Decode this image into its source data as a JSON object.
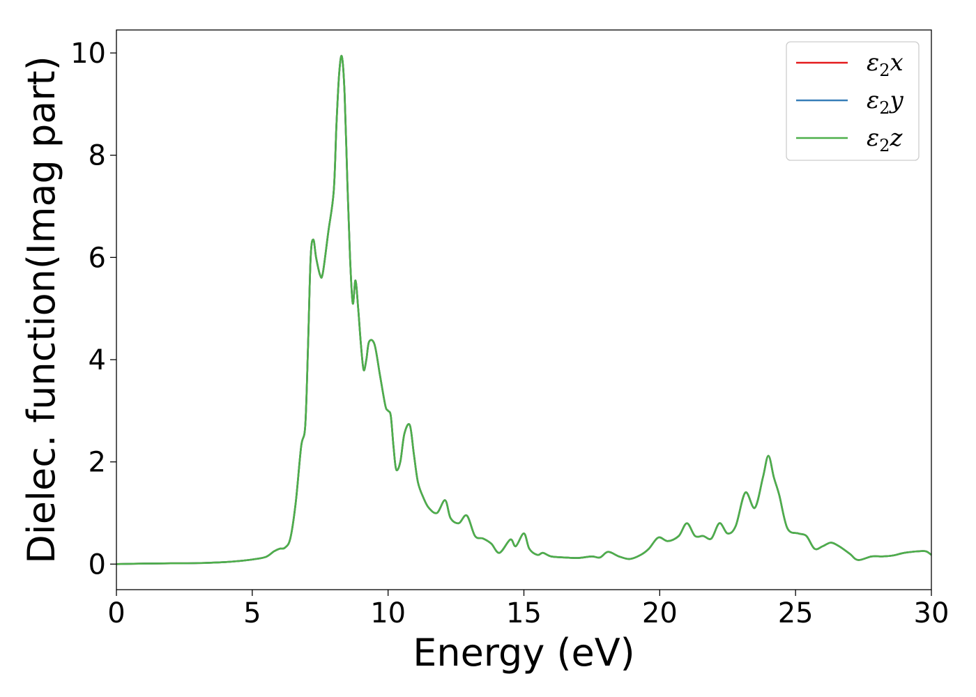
{
  "chart_data": {
    "type": "line",
    "xlabel": "Energy (eV)",
    "ylabel": "Dielec. function(Imag part)",
    "xlim": [
      0,
      30
    ],
    "ylim": [
      -0.5,
      10.45
    ],
    "xticks": [
      0,
      5,
      10,
      15,
      20,
      25,
      30
    ],
    "yticks": [
      0,
      2,
      4,
      6,
      8,
      10
    ],
    "grid": false,
    "legend_position": "top-right",
    "x": [
      0,
      1,
      2,
      3,
      4,
      4.5,
      5,
      5.5,
      5.8,
      6.0,
      6.2,
      6.4,
      6.6,
      6.8,
      6.95,
      7.05,
      7.15,
      7.25,
      7.35,
      7.5,
      7.6,
      7.8,
      8.0,
      8.1,
      8.2,
      8.3,
      8.4,
      8.5,
      8.6,
      8.7,
      8.8,
      8.9,
      9.0,
      9.1,
      9.2,
      9.3,
      9.5,
      9.7,
      9.9,
      10.0,
      10.1,
      10.2,
      10.3,
      10.45,
      10.6,
      10.8,
      10.95,
      11.1,
      11.3,
      11.5,
      11.8,
      12.1,
      12.3,
      12.6,
      12.9,
      13.2,
      13.5,
      13.8,
      14.1,
      14.5,
      14.7,
      15.0,
      15.2,
      15.5,
      15.7,
      16.0,
      16.5,
      17.0,
      17.5,
      17.8,
      18.1,
      18.5,
      18.9,
      19.3,
      19.6,
      19.95,
      20.3,
      20.7,
      21.0,
      21.3,
      21.6,
      21.9,
      22.2,
      22.5,
      22.8,
      23.15,
      23.5,
      23.8,
      24.0,
      24.2,
      24.4,
      24.7,
      25.1,
      25.4,
      25.7,
      26.0,
      26.3,
      26.6,
      27.0,
      27.3,
      27.8,
      28.2,
      28.6,
      29.0,
      29.5,
      29.8,
      30.0
    ],
    "series": [
      {
        "name": "ε₂x",
        "values": [
          0.0,
          0.01,
          0.015,
          0.02,
          0.04,
          0.06,
          0.09,
          0.14,
          0.25,
          0.3,
          0.32,
          0.5,
          1.2,
          2.3,
          2.7,
          4.2,
          6.0,
          6.35,
          6.0,
          5.65,
          5.7,
          6.5,
          7.3,
          8.6,
          9.6,
          9.93,
          9.2,
          7.5,
          6.0,
          5.1,
          5.55,
          5.0,
          4.3,
          3.8,
          4.0,
          4.35,
          4.3,
          3.7,
          3.1,
          3.0,
          2.9,
          2.3,
          1.85,
          2.0,
          2.55,
          2.72,
          2.15,
          1.6,
          1.3,
          1.1,
          1.0,
          1.25,
          0.9,
          0.8,
          0.95,
          0.55,
          0.5,
          0.4,
          0.22,
          0.48,
          0.35,
          0.6,
          0.3,
          0.18,
          0.22,
          0.15,
          0.13,
          0.12,
          0.15,
          0.13,
          0.24,
          0.15,
          0.1,
          0.18,
          0.3,
          0.52,
          0.45,
          0.55,
          0.8,
          0.55,
          0.55,
          0.5,
          0.8,
          0.6,
          0.75,
          1.4,
          1.1,
          1.7,
          2.12,
          1.7,
          1.35,
          0.7,
          0.6,
          0.55,
          0.3,
          0.35,
          0.42,
          0.35,
          0.2,
          0.08,
          0.15,
          0.15,
          0.17,
          0.22,
          0.25,
          0.25,
          0.18
        ]
      },
      {
        "name": "ε₂y",
        "values": [
          0.0,
          0.01,
          0.015,
          0.02,
          0.04,
          0.06,
          0.09,
          0.14,
          0.25,
          0.3,
          0.32,
          0.5,
          1.2,
          2.3,
          2.7,
          4.2,
          6.0,
          6.35,
          6.0,
          5.65,
          5.7,
          6.5,
          7.3,
          8.6,
          9.6,
          9.93,
          9.2,
          7.5,
          6.0,
          5.1,
          5.55,
          5.0,
          4.3,
          3.8,
          4.0,
          4.35,
          4.3,
          3.7,
          3.1,
          3.0,
          2.9,
          2.3,
          1.85,
          2.0,
          2.55,
          2.72,
          2.15,
          1.6,
          1.3,
          1.1,
          1.0,
          1.25,
          0.9,
          0.8,
          0.95,
          0.55,
          0.5,
          0.4,
          0.22,
          0.48,
          0.35,
          0.6,
          0.3,
          0.18,
          0.22,
          0.15,
          0.13,
          0.12,
          0.15,
          0.13,
          0.24,
          0.15,
          0.1,
          0.18,
          0.3,
          0.52,
          0.45,
          0.55,
          0.8,
          0.55,
          0.55,
          0.5,
          0.8,
          0.6,
          0.75,
          1.4,
          1.1,
          1.7,
          2.12,
          1.7,
          1.35,
          0.7,
          0.6,
          0.55,
          0.3,
          0.35,
          0.42,
          0.35,
          0.2,
          0.08,
          0.15,
          0.15,
          0.17,
          0.22,
          0.25,
          0.25,
          0.18
        ]
      },
      {
        "name": "ε₂z",
        "values": [
          0.0,
          0.01,
          0.015,
          0.02,
          0.04,
          0.06,
          0.09,
          0.14,
          0.25,
          0.3,
          0.32,
          0.5,
          1.2,
          2.3,
          2.7,
          4.2,
          6.0,
          6.35,
          6.0,
          5.65,
          5.7,
          6.5,
          7.3,
          8.6,
          9.6,
          9.93,
          9.2,
          7.5,
          6.0,
          5.1,
          5.55,
          5.0,
          4.3,
          3.8,
          4.0,
          4.35,
          4.3,
          3.7,
          3.1,
          3.0,
          2.9,
          2.3,
          1.85,
          2.0,
          2.55,
          2.72,
          2.15,
          1.6,
          1.3,
          1.1,
          1.0,
          1.25,
          0.9,
          0.8,
          0.95,
          0.55,
          0.5,
          0.4,
          0.22,
          0.48,
          0.35,
          0.6,
          0.3,
          0.18,
          0.22,
          0.15,
          0.13,
          0.12,
          0.15,
          0.13,
          0.24,
          0.15,
          0.1,
          0.18,
          0.3,
          0.52,
          0.45,
          0.55,
          0.8,
          0.55,
          0.55,
          0.5,
          0.8,
          0.6,
          0.75,
          1.4,
          1.1,
          1.7,
          2.12,
          1.7,
          1.35,
          0.7,
          0.6,
          0.55,
          0.3,
          0.35,
          0.42,
          0.35,
          0.2,
          0.08,
          0.15,
          0.15,
          0.17,
          0.22,
          0.25,
          0.25,
          0.18
        ]
      }
    ],
    "legend": [
      {
        "base": "ε",
        "sub": "2",
        "var": "x",
        "color": "#e41a1c"
      },
      {
        "base": "ε",
        "sub": "2",
        "var": "y",
        "color": "#377eb8"
      },
      {
        "base": "ε",
        "sub": "2",
        "var": "z",
        "color": "#4daf4a"
      }
    ]
  }
}
